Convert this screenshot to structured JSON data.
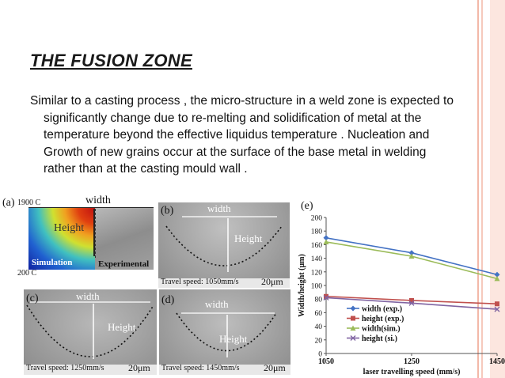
{
  "slide": {
    "title": "THE  FUSION  ZONE",
    "paragraph": "Similar to a casting process , the micro-structure in a weld zone is expected to significantly change due to re-melting and solidification of metal at the temperature beyond the effective liquidus temperature . Nucleation and Growth of new grains occur at the surface of the base metal in welding rather than at the casting mould wall ."
  },
  "panel_a": {
    "label": "(a)",
    "temp_high": "1900 C",
    "temp_low": "200 C",
    "width_label": "width",
    "height_label": "Height",
    "simulation_label": "Simulation",
    "experimental_label": "Experimental"
  },
  "panel_b": {
    "label": "(b)",
    "width_label": "width",
    "height_label": "Height",
    "speed": "Travel speed: 1050mm/s",
    "scale": "20μm"
  },
  "panel_c": {
    "label": "(c)",
    "width_label": "width",
    "height_label": "Height",
    "speed": "Travel speed: 1250mm/s",
    "scale": "20μm"
  },
  "panel_d": {
    "label": "(d)",
    "width_label": "width",
    "height_label": "Height",
    "speed": "Travel speed: 1450mm/s",
    "scale": "20μm"
  },
  "chart_data": {
    "type": "line",
    "panel_label": "(e)",
    "x": [
      1050,
      1250,
      1450
    ],
    "x_ticks": [
      "1050",
      "1250",
      "1450"
    ],
    "y_ticks": [
      "0",
      "20",
      "40",
      "60",
      "80",
      "100",
      "120",
      "140",
      "160",
      "180",
      "200"
    ],
    "xlim": [
      1050,
      1450
    ],
    "ylim": [
      0,
      200
    ],
    "xlabel": "laser travelling speed (mm/s)",
    "ylabel": "Width/height (μm)",
    "legend_position": "center-right",
    "grid": false,
    "series": [
      {
        "name": "width (exp.)",
        "values": [
          170,
          148,
          116
        ],
        "color": "#4472c4",
        "marker": "diamond"
      },
      {
        "name": "height (exp.)",
        "values": [
          84,
          78,
          73
        ],
        "color": "#c0504d",
        "marker": "square"
      },
      {
        "name": "width(sim.)",
        "values": [
          164,
          143,
          110
        ],
        "color": "#9bbb59",
        "marker": "triangle"
      },
      {
        "name": "height (si.)",
        "values": [
          82,
          74,
          65
        ],
        "color": "#8064a2",
        "marker": "x"
      }
    ]
  }
}
